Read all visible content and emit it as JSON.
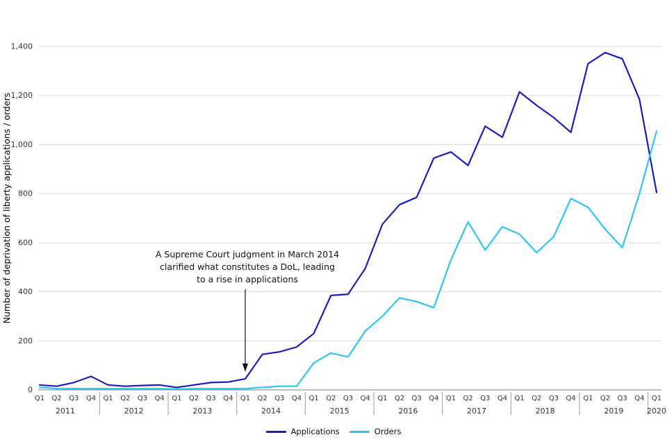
{
  "chart_data": {
    "type": "line",
    "title": "",
    "ylabel": "Number of deprivation of liberty applications / orders",
    "xlabel": "",
    "ylim": [
      0,
      1400
    ],
    "yticks": [
      0,
      200,
      400,
      600,
      800,
      1000,
      1200,
      1400
    ],
    "ytick_labels": [
      "0",
      "200",
      "400",
      "600",
      "800",
      "1,000",
      "1,200",
      "1,400"
    ],
    "grid": true,
    "legend_position": "bottom",
    "x_quarters": [
      "Q1",
      "Q2",
      "Q3",
      "Q4",
      "Q1",
      "Q2",
      "Q3",
      "Q4",
      "Q1",
      "Q2",
      "Q3",
      "Q4",
      "Q1",
      "Q2",
      "Q3",
      "Q4",
      "Q1",
      "Q2",
      "Q3",
      "Q4",
      "Q1",
      "Q2",
      "Q3",
      "Q4",
      "Q1",
      "Q2",
      "Q3",
      "Q4",
      "Q1",
      "Q2",
      "Q3",
      "Q4",
      "Q1",
      "Q2",
      "Q3",
      "Q4",
      "Q1"
    ],
    "years": [
      "2011",
      "2012",
      "2013",
      "2014",
      "2015",
      "2016",
      "2017",
      "2018",
      "2019",
      "2020"
    ],
    "series": [
      {
        "name": "Applications",
        "color": "#1c1cb8",
        "values": [
          20,
          15,
          30,
          55,
          20,
          15,
          18,
          20,
          10,
          20,
          30,
          32,
          45,
          145,
          155,
          175,
          230,
          385,
          390,
          495,
          675,
          755,
          785,
          945,
          970,
          915,
          1075,
          1030,
          1215,
          1160,
          1110,
          1050,
          1330,
          1375,
          1350,
          1185,
          805
        ]
      },
      {
        "name": "Orders",
        "color": "#2bc6f2",
        "values": [
          10,
          5,
          5,
          5,
          5,
          5,
          5,
          5,
          3,
          5,
          5,
          5,
          5,
          10,
          15,
          15,
          110,
          150,
          135,
          240,
          300,
          375,
          360,
          335,
          530,
          685,
          570,
          665,
          635,
          560,
          625,
          780,
          745,
          655,
          580,
          800,
          1055
        ]
      }
    ],
    "annotation": {
      "lines": [
        "A Supreme Court judgment in March 2014",
        "clarified what constitutes a DoL, leading",
        "to a rise in applications"
      ],
      "arrow_x_index": 12
    }
  }
}
